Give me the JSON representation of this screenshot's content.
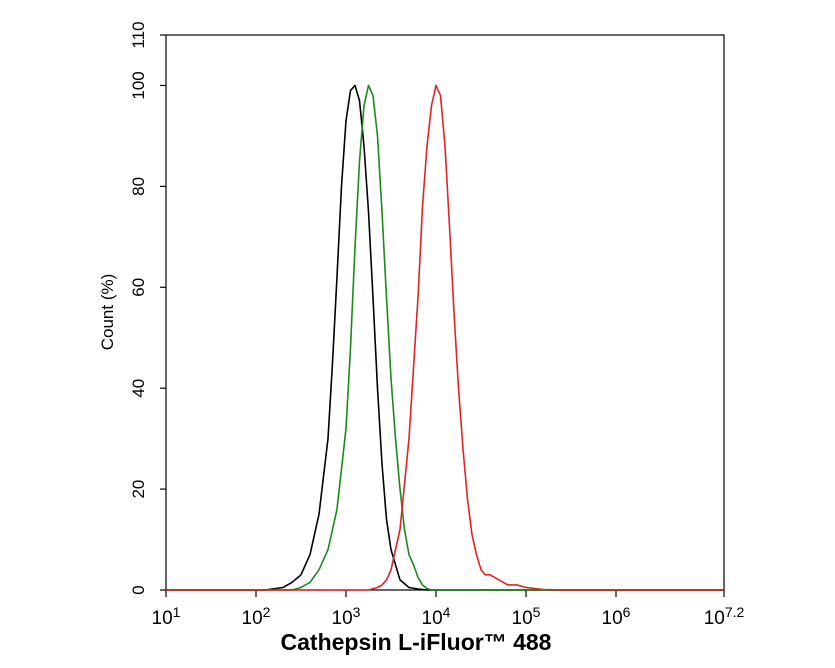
{
  "chart_data": {
    "type": "line",
    "xlabel": "Cathepsin L-iFluor™ 488",
    "ylabel": "Count  (%)",
    "x_scale": "log10",
    "xlim": [
      10,
      15848931.92
    ],
    "ylim": [
      0,
      110
    ],
    "grid": false,
    "legend": "none",
    "y_ticks": [
      {
        "value": 0,
        "label": "0"
      },
      {
        "value": 20,
        "label": "20"
      },
      {
        "value": 40,
        "label": "40"
      },
      {
        "value": 60,
        "label": "60"
      },
      {
        "value": 80,
        "label": "80"
      },
      {
        "value": 100,
        "label": "100"
      },
      {
        "value": 110,
        "label": "110"
      }
    ],
    "x_ticks": [
      {
        "value": 10,
        "base": "10",
        "exp": "1"
      },
      {
        "value": 100,
        "base": "10",
        "exp": "2"
      },
      {
        "value": 1000,
        "base": "10",
        "exp": "3"
      },
      {
        "value": 10000,
        "base": "10",
        "exp": "4"
      },
      {
        "value": 100000,
        "base": "10",
        "exp": "5"
      },
      {
        "value": 1000000,
        "base": "10",
        "exp": "6"
      },
      {
        "value": 15848931.92,
        "base": "10",
        "exp": "7.2"
      }
    ],
    "series": [
      {
        "color": "#000000",
        "x": [
          10,
          126,
          200,
          251,
          316,
          398,
          501,
          631,
          708,
          794,
          891,
          1000,
          1122,
          1259,
          1413,
          1585,
          1778,
          1995,
          2239,
          2512,
          2818,
          3162,
          3981,
          5012,
          6310,
          7943,
          15849000
        ],
        "y": [
          0,
          0,
          0.5,
          1.5,
          3,
          7,
          15,
          30,
          45,
          62,
          80,
          93,
          99,
          100,
          97,
          88,
          75,
          58,
          40,
          25,
          14,
          8,
          2,
          0.5,
          0.2,
          0,
          0
        ]
      },
      {
        "color": "#1a8a1a",
        "x": [
          10,
          251,
          316,
          398,
          501,
          631,
          794,
          1000,
          1122,
          1259,
          1413,
          1585,
          1778,
          1995,
          2239,
          2512,
          2818,
          3162,
          3548,
          3981,
          4467,
          5012,
          5623,
          6310,
          7079,
          7943,
          8913,
          15849000
        ],
        "y": [
          0,
          0,
          0.5,
          1.5,
          4,
          8,
          16,
          32,
          48,
          68,
          85,
          96,
          100,
          98,
          90,
          75,
          58,
          42,
          30,
          20,
          12,
          7,
          5,
          2.5,
          1,
          0.3,
          0,
          0
        ]
      },
      {
        "color": "#e32222",
        "x": [
          10,
          1778,
          2239,
          2512,
          2818,
          3162,
          3981,
          5012,
          6310,
          7079,
          7943,
          8913,
          10000,
          11220,
          12590,
          14130,
          15850,
          17780,
          19950,
          22390,
          25120,
          28180,
          31620,
          35480,
          39810,
          50120,
          63100,
          79430,
          100000,
          125900,
          158500,
          200000,
          251200,
          316200,
          15849000
        ],
        "y": [
          0,
          0,
          0.5,
          1,
          2,
          4,
          12,
          30,
          58,
          76,
          88,
          96,
          100,
          98,
          88,
          72,
          55,
          40,
          28,
          18,
          11,
          7,
          4,
          3,
          3,
          2,
          1,
          1,
          0.5,
          0.3,
          0.1,
          0.05,
          0,
          0,
          0
        ]
      }
    ]
  }
}
